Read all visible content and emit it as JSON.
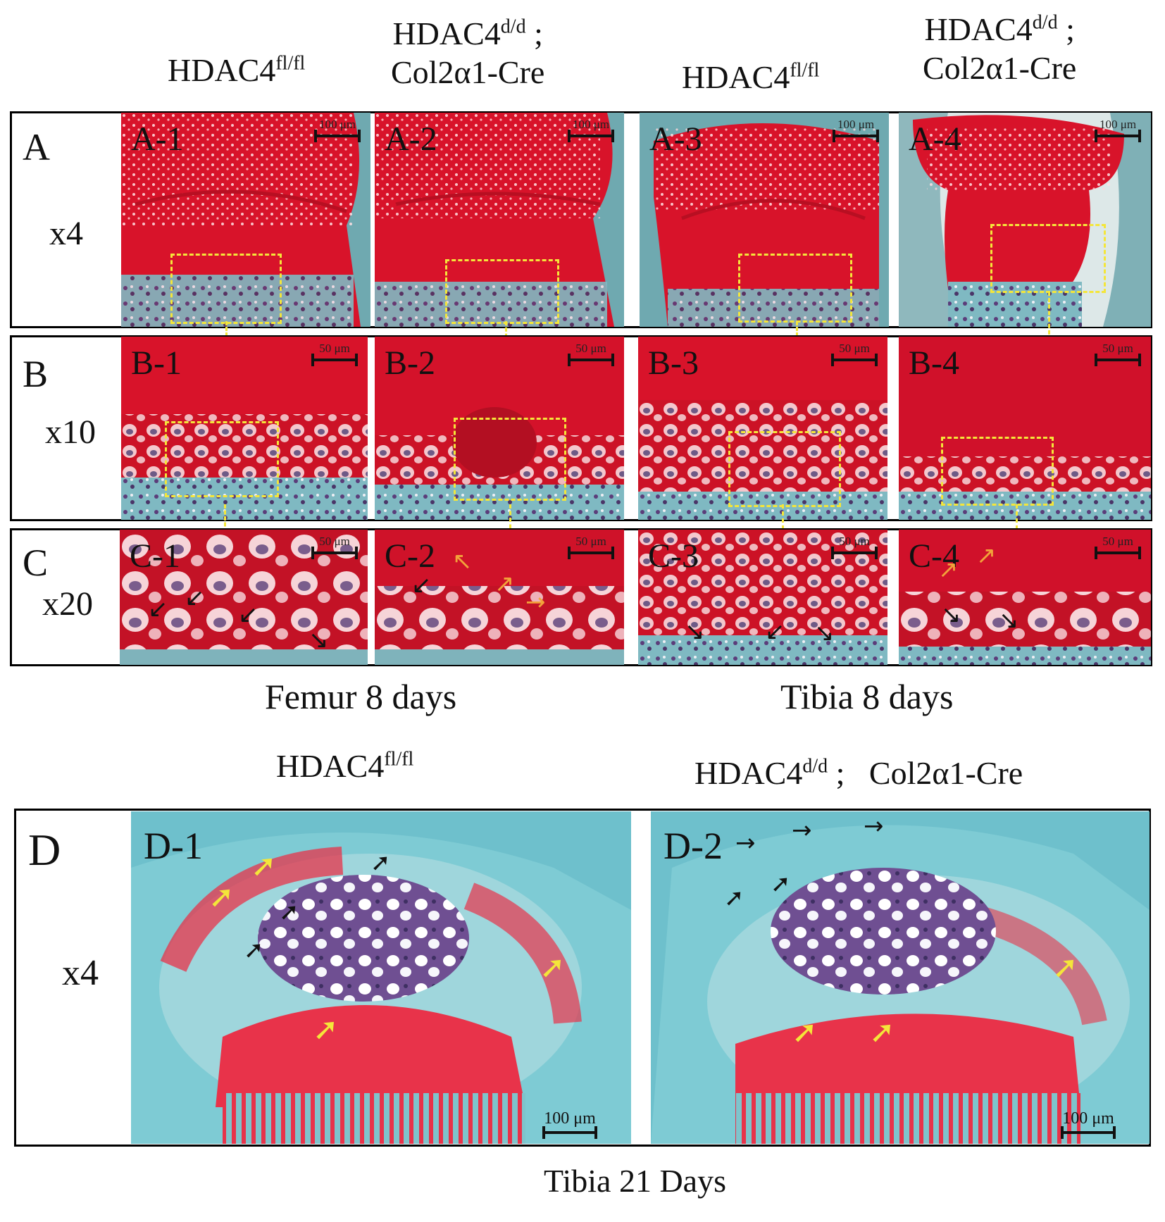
{
  "headers": {
    "col1": "HDAC4",
    "col1_sup": "fl/fl",
    "col2_line1": "HDAC4",
    "col2_sup": "d/d",
    "col2_semicolon": " ;",
    "col2_line2": "Col2α1-Cre",
    "col3": "HDAC4",
    "col3_sup": "fl/fl",
    "col4_line1": "HDAC4",
    "col4_sup": "d/d",
    "col4_semicolon": " ;",
    "col4_line2": "Col2α1-Cre"
  },
  "rows": {
    "A": {
      "label": "A",
      "mag": "x4"
    },
    "B": {
      "label": "B",
      "mag": "x10"
    },
    "C": {
      "label": "C",
      "mag": "x20"
    },
    "D": {
      "label": "D",
      "mag": "x4"
    }
  },
  "panels": {
    "A1": {
      "label": "A-1",
      "scale": "100 μm"
    },
    "A2": {
      "label": "A-2",
      "scale": "100 μm"
    },
    "A3": {
      "label": "A-3",
      "scale": "100 μm"
    },
    "A4": {
      "label": "A-4",
      "scale": "100 μm"
    },
    "B1": {
      "label": "B-1",
      "scale": "50 μm"
    },
    "B2": {
      "label": "B-2",
      "scale": "50 μm"
    },
    "B3": {
      "label": "B-3",
      "scale": "50 μm"
    },
    "B4": {
      "label": "B-4",
      "scale": "50 μm"
    },
    "C1": {
      "label": "C-1",
      "scale": "50 μm"
    },
    "C2": {
      "label": "C-2",
      "scale": "50 μm"
    },
    "C3": {
      "label": "C-3",
      "scale": "50 μm"
    },
    "C4": {
      "label": "C-4",
      "scale": "50 μm"
    },
    "D1": {
      "label": "D-1",
      "scale": "100 μm"
    },
    "D2": {
      "label": "D-2",
      "scale": "100 μm"
    }
  },
  "captions": {
    "femur": "Femur 8 days",
    "tibia": "Tibia 8 days",
    "tibia21": "Tibia 21 Days"
  },
  "bottom_headers": {
    "d1": "HDAC4",
    "d1_sup": "fl/fl",
    "d2": "HDAC4",
    "d2_sup": "d/d",
    "d2_rest": " ;   Col2α1-Cre"
  },
  "colors": {
    "safranin_red": "#d8132a",
    "deep_red": "#b80f22",
    "fast_green": "#5fb8c4",
    "light_cyan": "#9fd6dc",
    "purple": "#6a4a8a",
    "box_yellow": "#f4e63a"
  }
}
